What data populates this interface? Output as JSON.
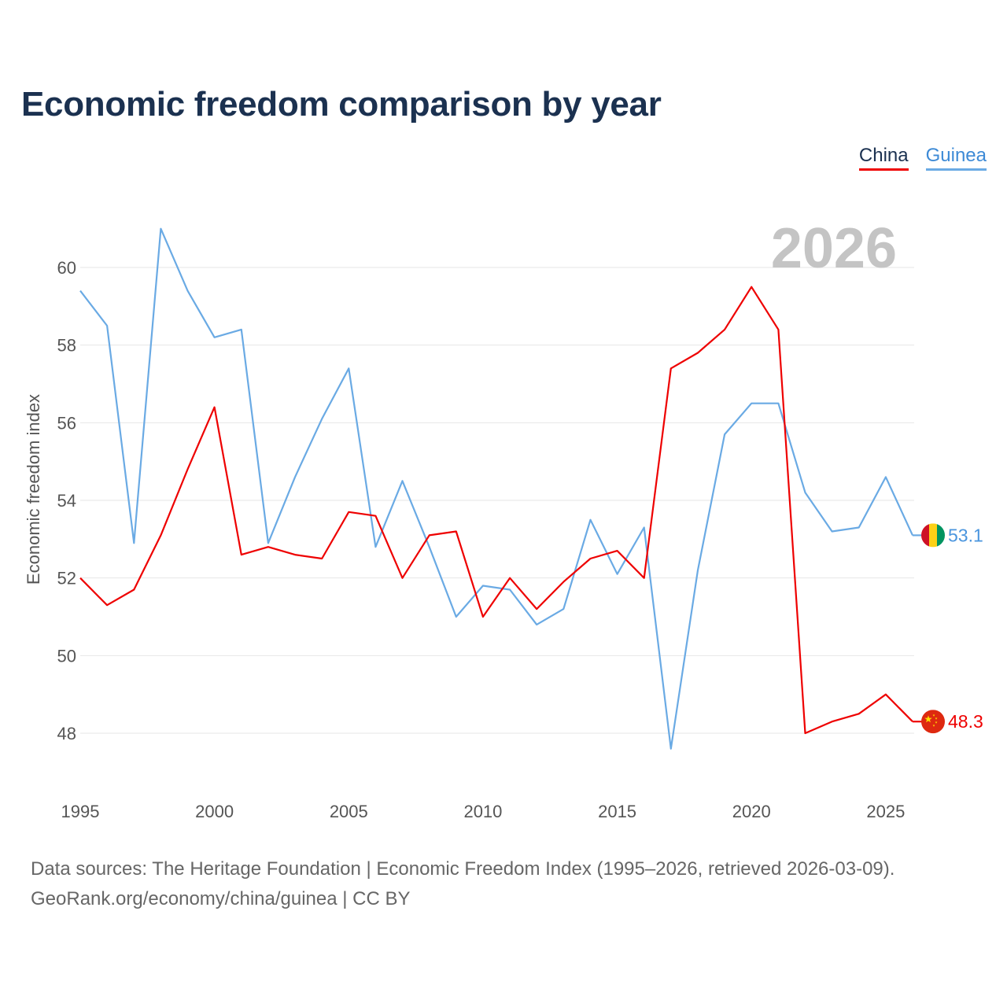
{
  "chart_data": {
    "type": "line",
    "title": "Economic freedom comparison by year",
    "ylabel": "Economic freedom index",
    "xlabel": "",
    "ylim": [
      46.7,
      61.8
    ],
    "xlim": [
      1995,
      2026
    ],
    "yticks": [
      48,
      50,
      52,
      54,
      56,
      58,
      60
    ],
    "xticks": [
      1995,
      2000,
      2005,
      2010,
      2015,
      2020,
      2025
    ],
    "year_label": "2026",
    "grid": true,
    "legend": "top-right",
    "x": [
      1995,
      1996,
      1997,
      1998,
      1999,
      2000,
      2001,
      2002,
      2003,
      2004,
      2005,
      2006,
      2007,
      2008,
      2009,
      2010,
      2011,
      2012,
      2013,
      2014,
      2015,
      2016,
      2017,
      2018,
      2019,
      2020,
      2021,
      2022,
      2023,
      2024,
      2025,
      2026
    ],
    "series": [
      {
        "name": "China",
        "color": "#ee0000",
        "end_label": "48.3",
        "flag_icon": "china-flag-icon",
        "values": [
          52.0,
          51.3,
          51.7,
          53.1,
          54.8,
          56.4,
          52.6,
          52.8,
          52.6,
          52.5,
          53.7,
          53.6,
          52.0,
          53.1,
          53.2,
          51.0,
          52.0,
          51.2,
          51.9,
          52.5,
          52.7,
          52.0,
          57.4,
          57.8,
          58.4,
          59.5,
          58.4,
          48.0,
          48.3,
          48.5,
          49.0,
          48.3
        ]
      },
      {
        "name": "Guinea",
        "color": "#6aaae4",
        "end_label": "53.1",
        "flag_icon": "guinea-flag-icon",
        "values": [
          59.4,
          58.5,
          52.9,
          61.0,
          59.4,
          58.2,
          58.4,
          52.9,
          54.6,
          56.1,
          57.4,
          52.8,
          54.5,
          52.8,
          51.0,
          51.8,
          51.7,
          50.8,
          51.2,
          53.5,
          52.1,
          53.3,
          47.6,
          52.2,
          55.7,
          56.5,
          56.5,
          54.2,
          53.2,
          53.3,
          54.6,
          53.1
        ]
      }
    ]
  },
  "footer": {
    "sources": "Data sources: The Heritage Foundation | Economic Freedom Index (1995–2026, retrieved 2026-03-09).",
    "credit": "GeoRank.org/economy/china/guinea | CC BY"
  }
}
